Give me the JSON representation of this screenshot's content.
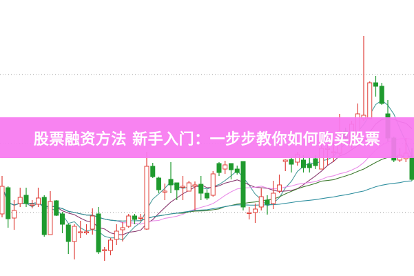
{
  "banner": {
    "title": "股票融资方法 新手入门：一步步教你如何购买股票",
    "color": "#f87af0"
  },
  "chart_data": {
    "type": "candlestick",
    "title": "",
    "xlabel": "",
    "ylabel": "",
    "ylim": [
      0,
      40
    ],
    "grid": "horizontal dotted",
    "gridlines": [
      9.2,
      19.2,
      29.2
    ],
    "up_color": "#e0403a",
    "down_color": "#1f9a2e",
    "ma_colors": [
      "#4a9c9c",
      "#8a3a70",
      "#e98ce8",
      "#3d7a2e",
      "#2f8f9f"
    ],
    "ma_periods": [
      5,
      10,
      20,
      30,
      60
    ],
    "ohlc": [
      [
        9.0,
        14.5,
        8.5,
        13.0
      ],
      [
        12.8,
        13.0,
        7.0,
        8.3
      ],
      [
        8.4,
        11.0,
        6.7,
        9.5
      ],
      [
        10.5,
        12.8,
        10.0,
        11.4
      ],
      [
        11.7,
        12.8,
        10.0,
        10.5
      ],
      [
        10.4,
        11.0,
        9.8,
        10.4
      ],
      [
        10.4,
        12.8,
        10.0,
        11.3
      ],
      [
        11.4,
        11.7,
        5.7,
        6.0
      ],
      [
        6.0,
        12.3,
        6.0,
        10.8
      ],
      [
        10.9,
        11.0,
        8.7,
        8.8
      ],
      [
        9.0,
        9.3,
        6.2,
        7.5
      ],
      [
        7.4,
        7.6,
        3.2,
        5.0
      ],
      [
        5.0,
        7.5,
        2.4,
        7.2
      ],
      [
        6.4,
        8.0,
        5.5,
        6.4
      ],
      [
        6.3,
        7.5,
        6.0,
        6.4
      ],
      [
        6.8,
        9.8,
        6.0,
        8.7
      ],
      [
        9.0,
        10.0,
        3.2,
        3.5
      ],
      [
        3.8,
        4.2,
        2.2,
        3.8
      ],
      [
        3.7,
        5.5,
        3.0,
        5.2
      ],
      [
        5.3,
        7.5,
        4.5,
        6.5
      ],
      [
        6.7,
        7.8,
        5.0,
        7.0
      ],
      [
        7.2,
        9.0,
        7.0,
        8.7
      ],
      [
        8.7,
        9.0,
        7.5,
        8.2
      ],
      [
        8.5,
        9.0,
        8.0,
        8.5
      ],
      [
        6.8,
        18.0,
        6.7,
        15.9
      ],
      [
        15.9,
        16.4,
        14.2,
        14.4
      ],
      [
        14.2,
        14.4,
        12.0,
        12.5
      ],
      [
        12.3,
        13.4,
        11.0,
        12.3
      ],
      [
        14.0,
        16.5,
        12.0,
        13.2
      ],
      [
        13.5,
        13.5,
        11.0,
        12.5
      ],
      [
        13.0,
        14.5,
        11.0,
        13.0
      ],
      [
        12.3,
        13.8,
        12.3,
        13.5
      ],
      [
        13.0,
        13.7,
        9.5,
        13.2
      ],
      [
        13.3,
        14.5,
        11.0,
        12.0
      ],
      [
        12.0,
        12.5,
        11.0,
        11.3
      ],
      [
        11.7,
        15.2,
        11.5,
        14.8
      ],
      [
        16.3,
        16.5,
        14.5,
        15.0
      ],
      [
        15.5,
        16.7,
        14.8,
        16.1
      ],
      [
        16.3,
        16.3,
        14.0,
        15.4
      ],
      [
        15.5,
        16.0,
        14.7,
        15.0
      ],
      [
        16.6,
        16.6,
        9.5,
        10.0
      ],
      [
        9.2,
        10.0,
        8.2,
        9.2
      ],
      [
        9.2,
        10.5,
        7.7,
        9.7
      ],
      [
        10.0,
        12.7,
        9.5,
        11.5
      ],
      [
        11.0,
        11.7,
        8.9,
        10.4
      ],
      [
        10.5,
        13.8,
        9.7,
        12.0
      ],
      [
        12.3,
        14.7,
        12.0,
        13.2
      ],
      [
        16.6,
        16.9,
        15.2,
        16.8
      ],
      [
        16.9,
        17.2,
        15.0,
        16.2
      ],
      [
        16.5,
        18.0,
        16.0,
        17.6
      ],
      [
        16.8,
        17.5,
        15.0,
        15.7
      ],
      [
        16.2,
        17.2,
        15.0,
        15.7
      ],
      [
        17.0,
        17.5,
        15.5,
        16.0
      ],
      [
        15.5,
        20.0,
        15.5,
        18.5
      ],
      [
        18.5,
        19.0,
        16.0,
        18.5
      ],
      [
        18.0,
        19.5,
        16.5,
        18.0
      ],
      [
        17.8,
        23.5,
        17.5,
        21.0
      ],
      [
        21.0,
        21.5,
        19.5,
        20.0
      ],
      [
        19.0,
        22.5,
        18.5,
        22.0
      ],
      [
        20.0,
        25.0,
        19.0,
        23.5
      ],
      [
        22.8,
        34.8,
        22.5,
        23.3
      ],
      [
        22.8,
        28.2,
        22.7,
        28.0
      ],
      [
        28.0,
        29.0,
        26.0,
        27.5
      ],
      [
        27.5,
        28.0,
        24.8,
        25.0
      ],
      [
        23.5,
        25.5,
        19.5,
        20.0
      ],
      [
        20.0,
        20.2,
        16.5,
        16.8
      ],
      [
        16.8,
        18.5,
        16.5,
        17.5
      ],
      [
        17.0,
        20.0,
        16.5,
        17.8
      ],
      [
        17.2,
        18.5,
        13.8,
        14.0
      ]
    ]
  }
}
